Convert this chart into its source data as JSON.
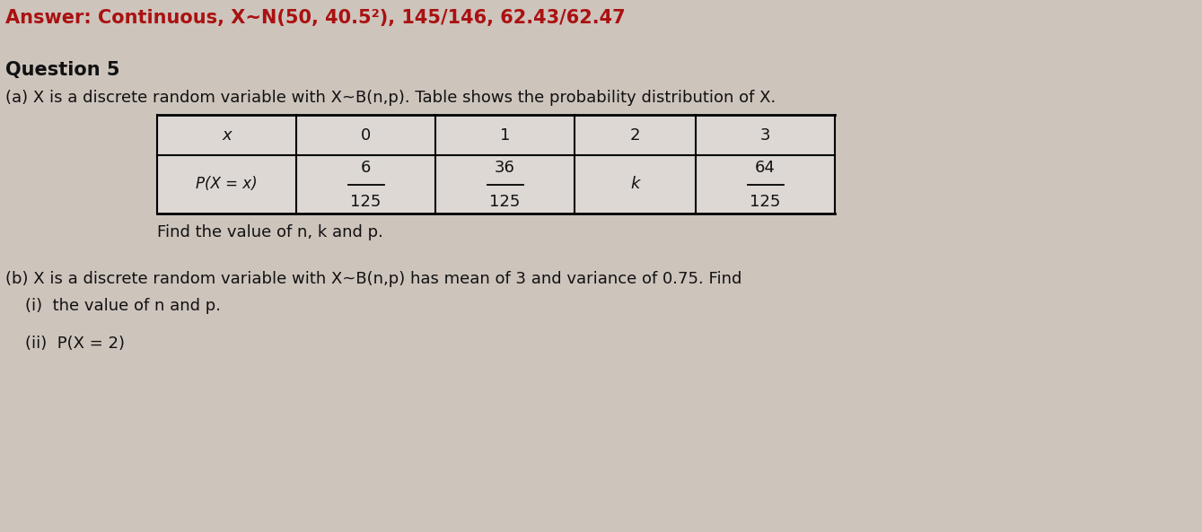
{
  "background_color": "#cdc4bc",
  "answer_line": "Answer: Continuous, X~N(50, 40.5²), 145/146, 62.43/62.47",
  "answer_color": "#aa1111",
  "question_title": "Question 5",
  "part_a_intro": "(a) X is a discrete random variable with X~B(n,p). Table shows the probability distribution of X.",
  "part_a_find": "Find the value of n, k and p.",
  "part_b_intro": "(b) X is a discrete random variable with X~B(n,p) has mean of 3 and variance of 0.75. Find",
  "part_b_i": "(i)  the value of n and p.",
  "part_b_ii": "(ii)  P(X = 2)",
  "table_headers": [
    "x",
    "0",
    "1",
    "2",
    "3"
  ],
  "table_row_label": "P(X = x)",
  "table_nums": [
    "6",
    "36",
    "k",
    "64"
  ],
  "table_dens": [
    "125",
    "125",
    "",
    "125"
  ],
  "text_color": "#111111",
  "table_bg": "#e8e4e0",
  "fs_answer": 15,
  "fs_title": 15,
  "fs_body": 13,
  "fs_table": 13
}
